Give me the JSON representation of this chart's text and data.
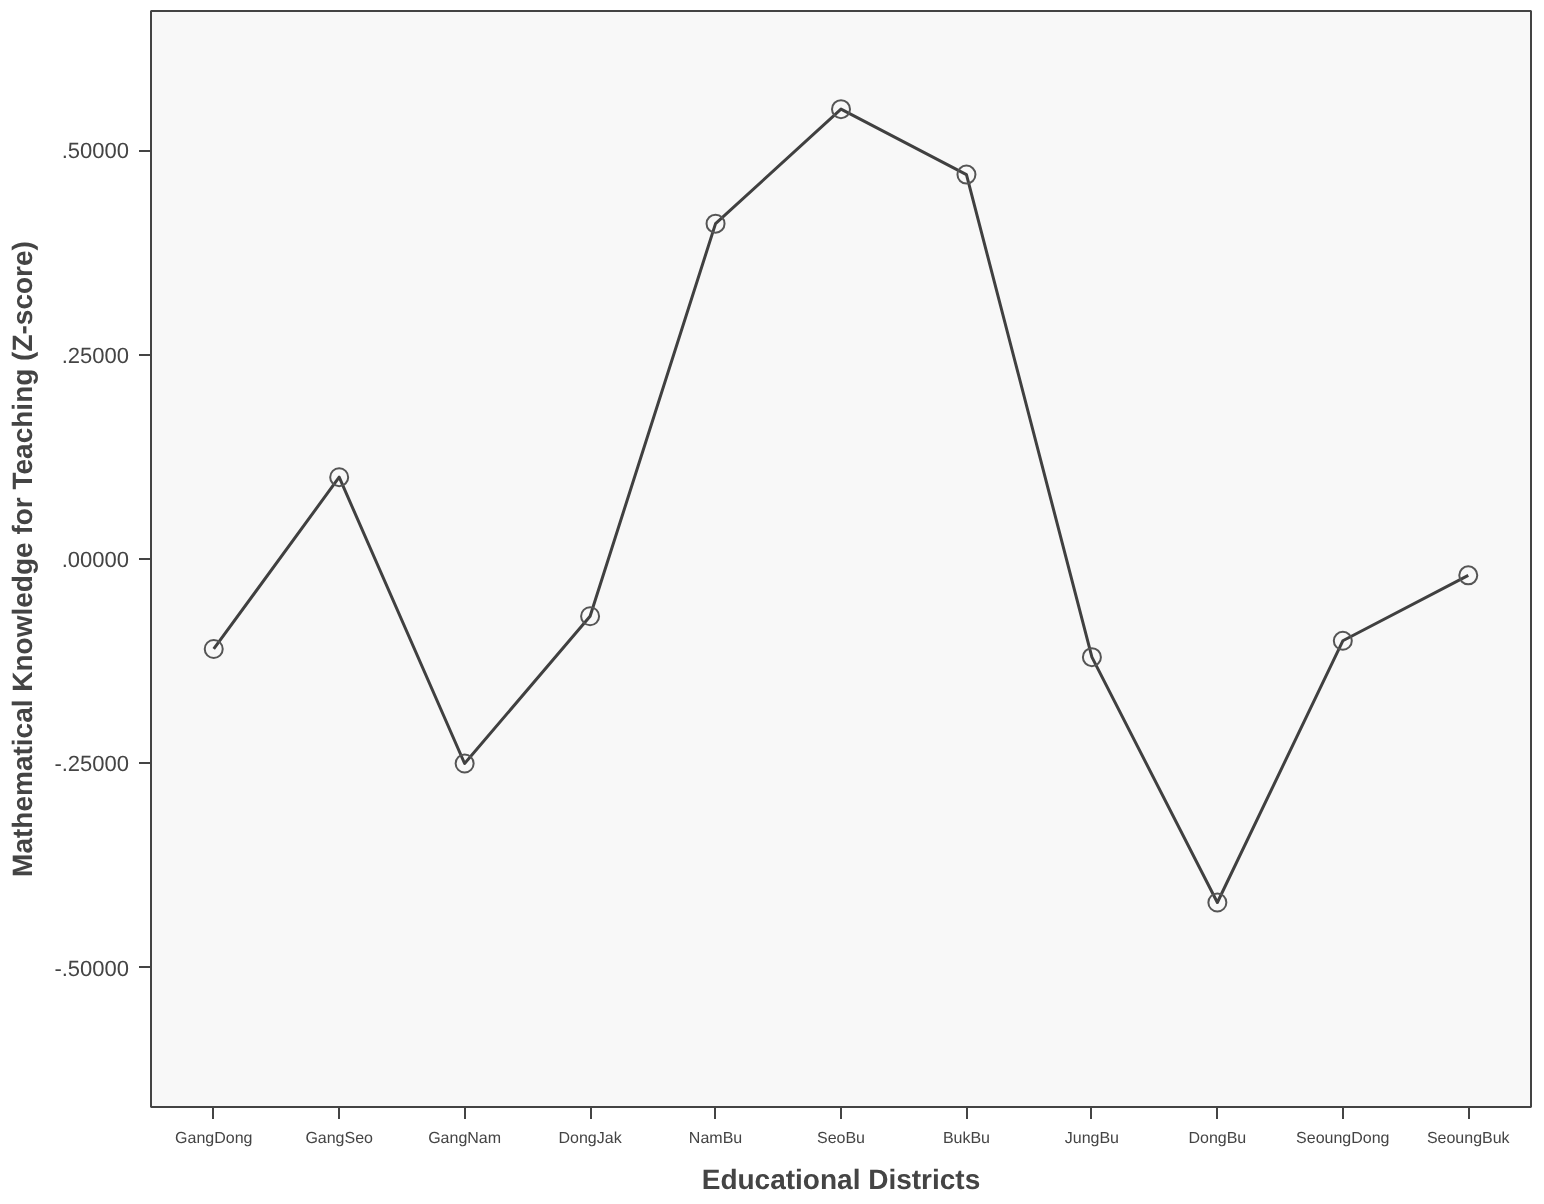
{
  "chart_data": {
    "type": "line",
    "xlabel": "Educational Districts",
    "ylabel": "Mathematical Knowledge for Teaching (Z-score)",
    "categories": [
      "GangDong",
      "GangSeo",
      "GangNam",
      "DongJak",
      "NamBu",
      "SeoBu",
      "BukBu",
      "JungBu",
      "DongBu",
      "SeoungDong",
      "SeoungBuk"
    ],
    "series": [
      {
        "color": "#404040",
        "values": [
          -0.11,
          0.1,
          -0.25,
          -0.07,
          0.41,
          0.55,
          0.47,
          -0.12,
          -0.42,
          -0.1,
          -0.02
        ]
      }
    ],
    "ylim": [
      -0.67,
      0.67
    ],
    "yticks": [
      {
        "value": -0.5,
        "label": "-.50000"
      },
      {
        "value": -0.25,
        "label": "-.25000"
      },
      {
        "value": 0,
        "label": ".00000"
      },
      {
        "value": 0.25,
        "label": ".25000"
      },
      {
        "value": 0.5,
        "label": ".50000"
      }
    ],
    "marker": "circle",
    "line_style": "solid",
    "grid": false
  }
}
